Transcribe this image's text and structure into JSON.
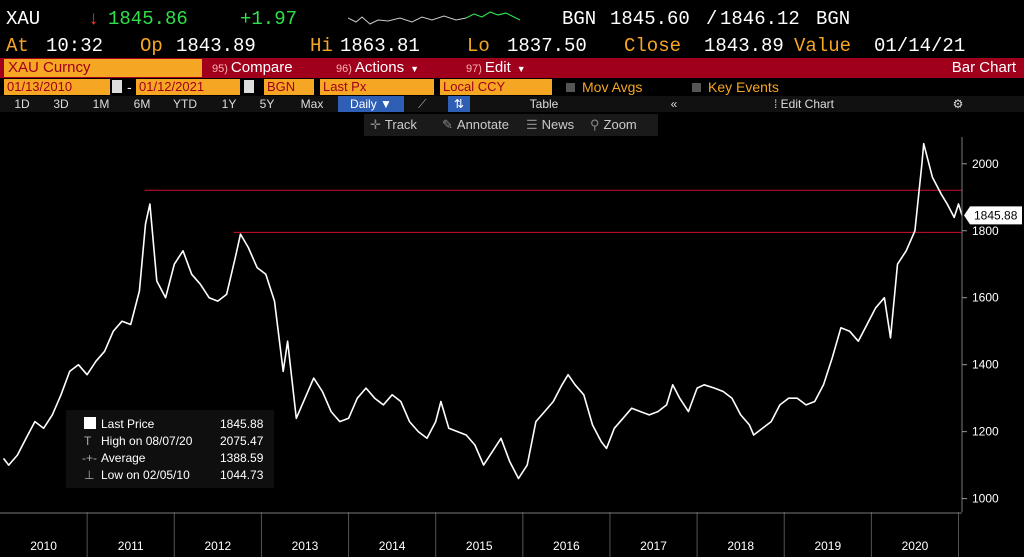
{
  "header": {
    "ticker": "XAU",
    "arrow": "↓",
    "last": "1845.86",
    "change": "+1.97",
    "source": "BGN",
    "bid": "1845.60",
    "sep": "/",
    "ask": "1846.12",
    "source2": "BGN",
    "at_label": "At",
    "time": "10:32",
    "op_label": "Op",
    "open": "1843.89",
    "hi_label": "Hi",
    "high": "1863.81",
    "lo_label": "Lo",
    "low": "1837.50",
    "close_label": "Close",
    "close": "1843.89",
    "value_label": "Value",
    "date": "01/14/21"
  },
  "toolbar": {
    "security": "XAU Curncy",
    "compare_num": "95)",
    "compare": "Compare",
    "actions_num": "96)",
    "actions": "Actions",
    "edit_num": "97)",
    "edit": "Edit",
    "chart_type": "Bar Chart"
  },
  "fields": {
    "start_date": "01/13/2010",
    "dash": "-",
    "end_date": "01/12/2021",
    "source": "BGN",
    "price_field": "Last Px",
    "currency": "Local CCY",
    "mov_avgs": "Mov Avgs",
    "key_events": "Key Events"
  },
  "periods": [
    "1D",
    "3D",
    "1M",
    "6M",
    "YTD",
    "1Y",
    "5Y",
    "Max"
  ],
  "period_selected": "Daily",
  "table_label": "Table",
  "collapse": "«",
  "edit_chart": "Edit Chart",
  "gear": "⚙",
  "chart_tools": {
    "track": "Track",
    "annotate": "Annotate",
    "news": "News",
    "zoom": "Zoom"
  },
  "chart_data": {
    "type": "line",
    "color": "#ffffff",
    "background": "#000000",
    "grid": false,
    "ylim": [
      960,
      2080
    ],
    "xlim": [
      2010.0,
      2021.04
    ],
    "y_ticks": [
      1000,
      1200,
      1400,
      1600,
      1800,
      2000
    ],
    "x_tick_labels": [
      "2010",
      "2011",
      "2012",
      "2013",
      "2014",
      "2015",
      "2016",
      "2017",
      "2018",
      "2019",
      "2020"
    ],
    "last_price_label": "1845.88",
    "reference_lines": [
      1921,
      1795
    ],
    "reference_color": "#d0102a",
    "x": [
      2010.04,
      2010.1,
      2010.2,
      2010.3,
      2010.4,
      2010.5,
      2010.6,
      2010.7,
      2010.8,
      2010.9,
      2011.0,
      2011.1,
      2011.2,
      2011.3,
      2011.4,
      2011.5,
      2011.6,
      2011.67,
      2011.72,
      2011.8,
      2011.9,
      2012.0,
      2012.1,
      2012.2,
      2012.3,
      2012.4,
      2012.5,
      2012.6,
      2012.7,
      2012.76,
      2012.85,
      2012.95,
      2013.05,
      2013.15,
      2013.25,
      2013.3,
      2013.4,
      2013.5,
      2013.6,
      2013.7,
      2013.8,
      2013.9,
      2014.0,
      2014.1,
      2014.2,
      2014.3,
      2014.4,
      2014.5,
      2014.6,
      2014.7,
      2014.8,
      2014.9,
      2015.0,
      2015.06,
      2015.15,
      2015.25,
      2015.35,
      2015.45,
      2015.55,
      2015.65,
      2015.75,
      2015.85,
      2015.95,
      2016.05,
      2016.15,
      2016.25,
      2016.35,
      2016.45,
      2016.52,
      2016.6,
      2016.7,
      2016.8,
      2016.9,
      2016.96,
      2017.05,
      2017.15,
      2017.25,
      2017.35,
      2017.45,
      2017.55,
      2017.65,
      2017.72,
      2017.8,
      2017.9,
      2018.0,
      2018.08,
      2018.2,
      2018.3,
      2018.4,
      2018.5,
      2018.6,
      2018.65,
      2018.75,
      2018.85,
      2018.95,
      2019.05,
      2019.15,
      2019.25,
      2019.35,
      2019.45,
      2019.55,
      2019.65,
      2019.75,
      2019.85,
      2019.95,
      2020.05,
      2020.15,
      2020.22,
      2020.3,
      2020.4,
      2020.5,
      2020.58,
      2020.6,
      2020.7,
      2020.8,
      2020.87,
      2020.95,
      2021.0,
      2021.04
    ],
    "values": [
      1120,
      1100,
      1130,
      1180,
      1230,
      1210,
      1250,
      1310,
      1380,
      1400,
      1370,
      1410,
      1440,
      1500,
      1530,
      1520,
      1620,
      1820,
      1880,
      1650,
      1600,
      1700,
      1740,
      1670,
      1640,
      1600,
      1590,
      1610,
      1720,
      1790,
      1750,
      1690,
      1670,
      1590,
      1380,
      1470,
      1240,
      1300,
      1360,
      1320,
      1260,
      1230,
      1240,
      1300,
      1330,
      1300,
      1280,
      1310,
      1290,
      1230,
      1200,
      1180,
      1230,
      1290,
      1210,
      1200,
      1190,
      1160,
      1100,
      1140,
      1180,
      1110,
      1060,
      1100,
      1230,
      1260,
      1290,
      1340,
      1370,
      1340,
      1310,
      1220,
      1170,
      1150,
      1210,
      1240,
      1270,
      1260,
      1250,
      1260,
      1280,
      1340,
      1300,
      1260,
      1330,
      1340,
      1330,
      1320,
      1300,
      1250,
      1220,
      1190,
      1210,
      1230,
      1280,
      1300,
      1300,
      1280,
      1290,
      1340,
      1420,
      1510,
      1500,
      1470,
      1520,
      1570,
      1600,
      1480,
      1700,
      1740,
      1800,
      2000,
      2060,
      1960,
      1910,
      1880,
      1840,
      1880,
      1846
    ]
  },
  "legend": {
    "items": [
      {
        "label": "Last Price",
        "value": "1845.88"
      },
      {
        "label": "High on 08/07/20",
        "value": "2075.47"
      },
      {
        "label": "Average",
        "value": "1388.59"
      },
      {
        "label": "Low on 02/05/10",
        "value": "1044.73"
      }
    ]
  }
}
